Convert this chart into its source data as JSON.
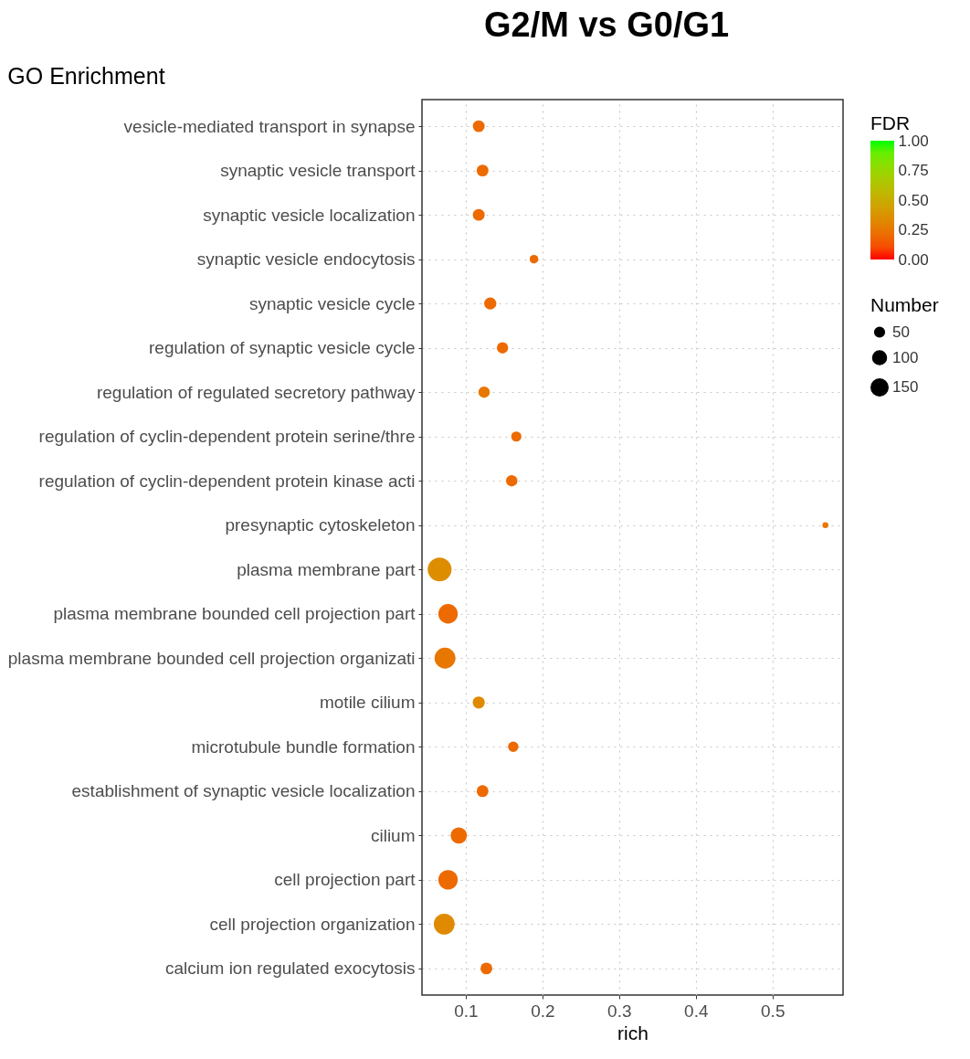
{
  "chart_data": {
    "type": "bubble",
    "title": "G2/M  vs G0/G1",
    "subtitle": "GO Enrichment",
    "xlabel": "rich",
    "orientation": "horizontal",
    "categories": [
      "vesicle-mediated transport in synapse",
      "synaptic vesicle transport",
      "synaptic vesicle localization",
      "synaptic vesicle endocytosis",
      "synaptic vesicle cycle",
      "regulation of synaptic vesicle cycle",
      "regulation of regulated secretory pathway",
      "regulation of cyclin-dependent protein serine/thre",
      "regulation of cyclin-dependent protein kinase acti",
      "presynaptic cytoskeleton",
      "plasma membrane part",
      "plasma membrane bounded cell projection part",
      "plasma membrane bounded cell projection organizati",
      "motile cilium",
      "microtubule bundle formation",
      "establishment of synaptic vesicle localization",
      "cilium",
      "cell projection part",
      "cell projection organization",
      "calcium ion regulated exocytosis"
    ],
    "values": [
      0.117,
      0.122,
      0.117,
      0.189,
      0.132,
      0.148,
      0.124,
      0.166,
      0.16,
      0.569,
      0.066,
      0.077,
      0.073,
      0.117,
      0.162,
      0.122,
      0.091,
      0.077,
      0.072,
      0.127
    ],
    "sizes": [
      74,
      74,
      74,
      39,
      78,
      68,
      68,
      55,
      68,
      19,
      300,
      200,
      230,
      78,
      58,
      74,
      140,
      200,
      230,
      74
    ],
    "size_legend": [
      50,
      100,
      150
    ],
    "cvalues": [
      0.2,
      0.2,
      0.2,
      0.2,
      0.2,
      0.2,
      0.25,
      0.2,
      0.2,
      0.25,
      0.35,
      0.2,
      0.25,
      0.33,
      0.2,
      0.2,
      0.2,
      0.2,
      0.33,
      0.2
    ],
    "clabel": "FDR",
    "clim": [
      0,
      1
    ],
    "cticks": [
      {
        "value": 0,
        "label": "0.00"
      },
      {
        "value": 0.25,
        "label": "0.25"
      },
      {
        "value": 0.5,
        "label": "0.50"
      },
      {
        "value": 0.75,
        "label": "0.75"
      },
      {
        "value": 1,
        "label": "1.00"
      }
    ],
    "legend_title": "Number",
    "xlim": [
      0.043,
      0.592
    ],
    "xticks": [
      0.1,
      0.2,
      0.3,
      0.4,
      0.5
    ],
    "grid": true,
    "marker": "circle"
  }
}
